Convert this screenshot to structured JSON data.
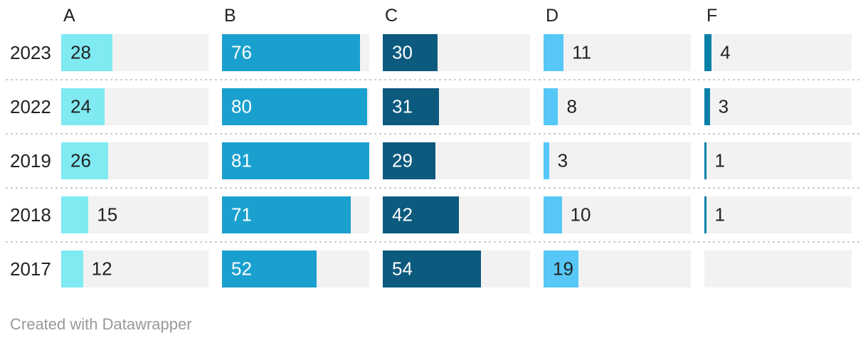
{
  "chart_data": {
    "type": "bar",
    "orientation": "horizontal",
    "layout": "split-column-bars",
    "title": "",
    "categories": [
      "2023",
      "2022",
      "2019",
      "2018",
      "2017"
    ],
    "columns": [
      {
        "label": "A",
        "color": "#7FEAF2",
        "label_on_bar": "#222222"
      },
      {
        "label": "B",
        "color": "#1AA0CE",
        "label_on_bar": "#ffffff"
      },
      {
        "label": "C",
        "color": "#0C5A7E",
        "label_on_bar": "#ffffff"
      },
      {
        "label": "D",
        "color": "#56C7F7",
        "label_on_bar": "#222222"
      },
      {
        "label": "F",
        "color": "#0880A8",
        "label_on_bar": "#ffffff"
      }
    ],
    "series": [
      {
        "name": "A",
        "values": [
          28,
          24,
          26,
          15,
          12
        ]
      },
      {
        "name": "B",
        "values": [
          76,
          80,
          81,
          71,
          52
        ]
      },
      {
        "name": "C",
        "values": [
          30,
          31,
          29,
          42,
          54
        ]
      },
      {
        "name": "D",
        "values": [
          11,
          8,
          3,
          10,
          19
        ]
      },
      {
        "name": "F",
        "values": [
          4,
          3,
          1,
          1,
          null
        ]
      }
    ],
    "xlim": [
      0,
      81
    ],
    "track_color": "#F2F2F2",
    "label_outside_color": "#222222",
    "row_separator_style": "dotted",
    "legend_position": "none",
    "grid": "off"
  },
  "footer": {
    "credit": "Created with Datawrapper"
  }
}
